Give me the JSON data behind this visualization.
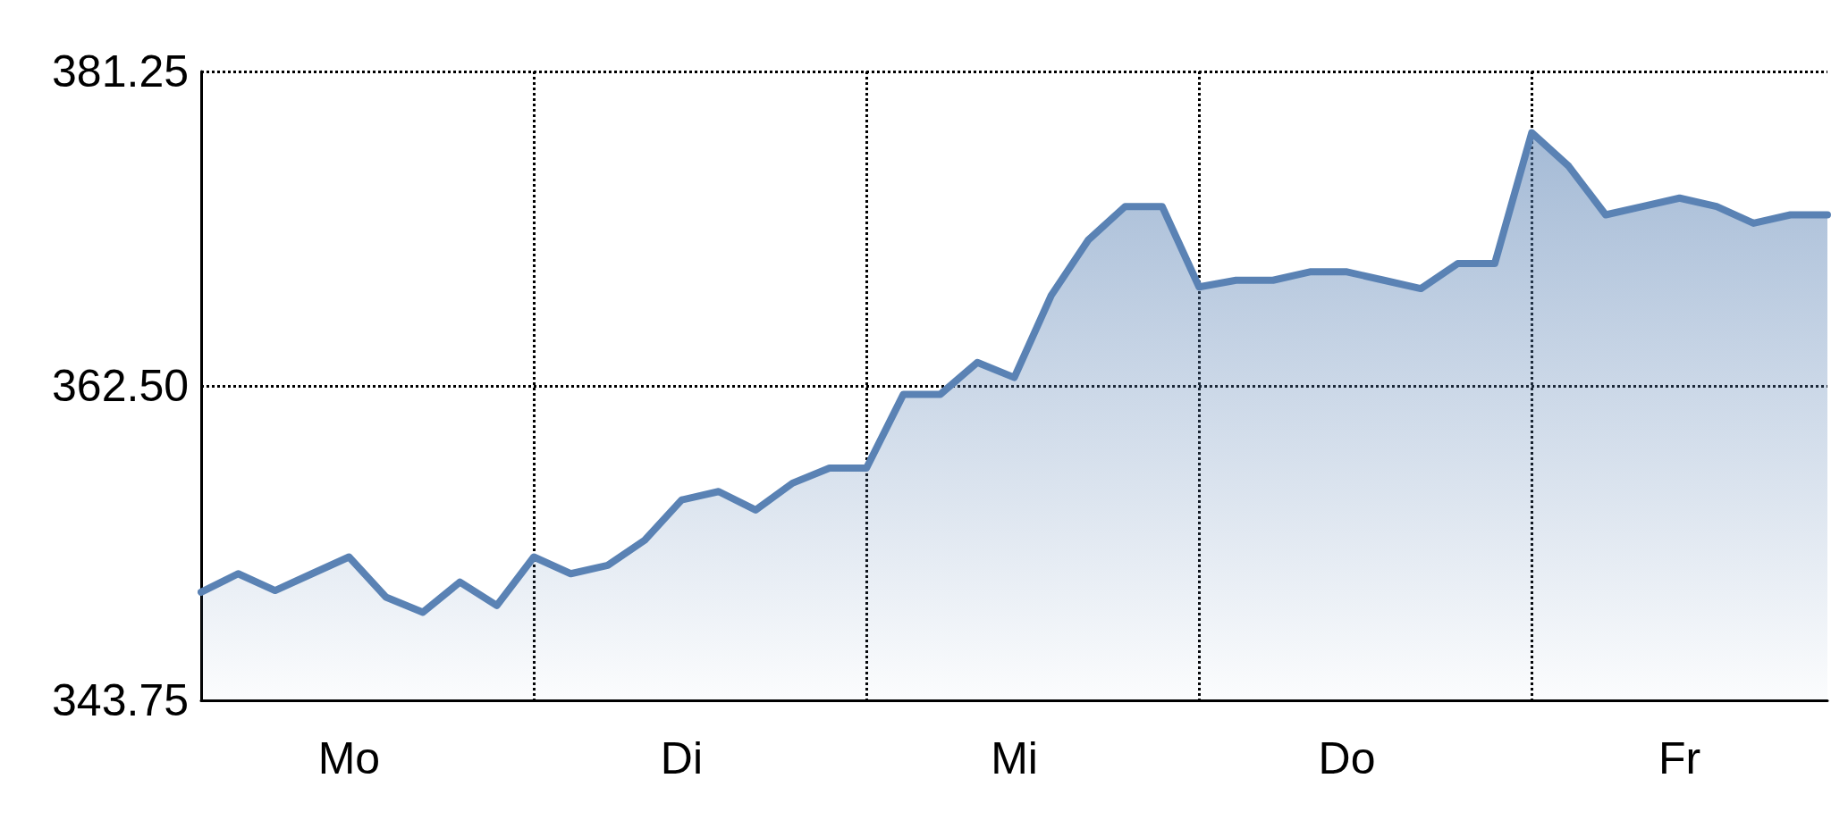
{
  "chart_data": {
    "type": "area",
    "categories": [
      null,
      null,
      null,
      null,
      "Mo",
      null,
      null,
      null,
      null,
      null,
      null,
      null,
      null,
      "Di",
      null,
      null,
      null,
      null,
      null,
      null,
      null,
      null,
      "Mi",
      null,
      null,
      null,
      null,
      null,
      null,
      null,
      null,
      "Do",
      null,
      null,
      null,
      null,
      null,
      null,
      null,
      null,
      "Fr",
      null,
      null,
      null,
      null
    ],
    "series": [
      {
        "color": "#5a82b4",
        "values": [
          350.2,
          351.3,
          350.3,
          351.3,
          352.3,
          349.9,
          349.0,
          350.8,
          349.4,
          352.3,
          351.3,
          351.8,
          353.3,
          355.7,
          356.2,
          355.1,
          356.7,
          357.6,
          357.6,
          362.0,
          362.0,
          363.9,
          363.0,
          367.9,
          371.2,
          373.2,
          373.2,
          368.4,
          368.8,
          368.8,
          369.3,
          369.3,
          368.8,
          368.3,
          369.8,
          369.8,
          377.6,
          375.6,
          372.7,
          373.2,
          373.7,
          373.2,
          372.2,
          372.7,
          372.7
        ]
      }
    ],
    "ylim": [
      343.75,
      381.25
    ],
    "yticks": [
      343.75,
      {
        "value": 362.5,
        "label": "362.50"
      },
      381.25
    ],
    "grid": true,
    "line_style": "dotted",
    "marker": "none"
  }
}
